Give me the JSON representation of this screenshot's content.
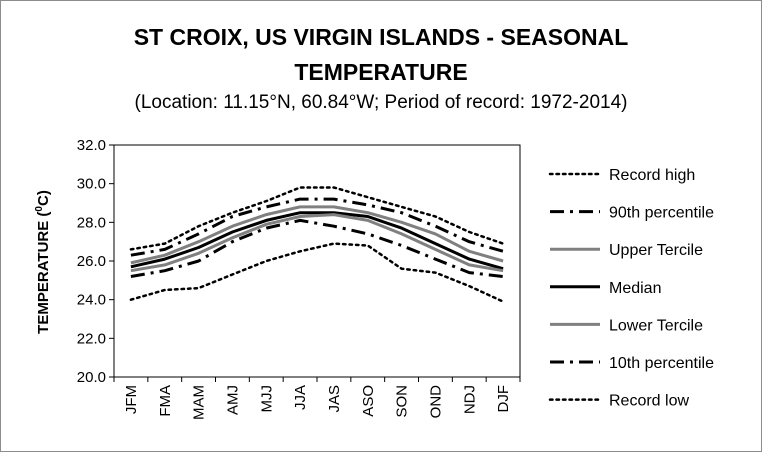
{
  "chart_data": {
    "type": "line",
    "title_line1": "ST CROIX, US VIRGIN ISLANDS - SEASONAL",
    "title_line2": "TEMPERATURE",
    "subtitle": "(Location: 11.15°N, 60.84°W; Period of record: 1972-2014)",
    "ylabel_main": "TEMPERATURE (",
    "ylabel_sup": "0",
    "ylabel_end": "C)",
    "ylim": [
      20.0,
      32.0
    ],
    "yticks": [
      "20.0",
      "22.0",
      "24.0",
      "26.0",
      "28.0",
      "30.0",
      "32.0"
    ],
    "categories": [
      "JFM",
      "FMA",
      "MAM",
      "AMJ",
      "MJJ",
      "JJA",
      "JAS",
      "ASO",
      "SON",
      "OND",
      "NDJ",
      "DJF"
    ],
    "legend_position": "right",
    "series": [
      {
        "name": "Record high",
        "style": "dotted",
        "color": "#000000",
        "values": [
          26.6,
          26.9,
          27.8,
          28.5,
          29.1,
          29.8,
          29.8,
          29.3,
          28.8,
          28.3,
          27.5,
          26.9
        ]
      },
      {
        "name": "90th percentile",
        "style": "dashdot",
        "color": "#000000",
        "values": [
          26.3,
          26.6,
          27.4,
          28.3,
          28.8,
          29.2,
          29.2,
          28.9,
          28.5,
          27.8,
          27.0,
          26.5
        ]
      },
      {
        "name": "Upper Tercile",
        "style": "solid-gray",
        "color": "#808080",
        "values": [
          25.9,
          26.3,
          27.0,
          27.8,
          28.4,
          28.8,
          28.8,
          28.5,
          28.0,
          27.4,
          26.5,
          26.0
        ]
      },
      {
        "name": "Median",
        "style": "solid",
        "color": "#000000",
        "values": [
          25.7,
          26.1,
          26.7,
          27.5,
          28.1,
          28.5,
          28.5,
          28.3,
          27.7,
          26.9,
          26.1,
          25.6
        ]
      },
      {
        "name": "Lower Tercile",
        "style": "solid-gray",
        "color": "#808080",
        "values": [
          25.5,
          25.8,
          26.4,
          27.2,
          27.9,
          28.3,
          28.4,
          28.1,
          27.4,
          26.6,
          25.8,
          25.5
        ]
      },
      {
        "name": "10th percentile",
        "style": "dashdot",
        "color": "#000000",
        "values": [
          25.2,
          25.5,
          26.0,
          27.0,
          27.7,
          28.1,
          27.8,
          27.4,
          26.8,
          26.1,
          25.4,
          25.2
        ]
      },
      {
        "name": "Record low",
        "style": "dotted",
        "color": "#000000",
        "values": [
          24.0,
          24.5,
          24.6,
          25.3,
          26.0,
          26.5,
          26.9,
          26.8,
          25.6,
          25.4,
          24.7,
          23.9
        ]
      }
    ]
  }
}
